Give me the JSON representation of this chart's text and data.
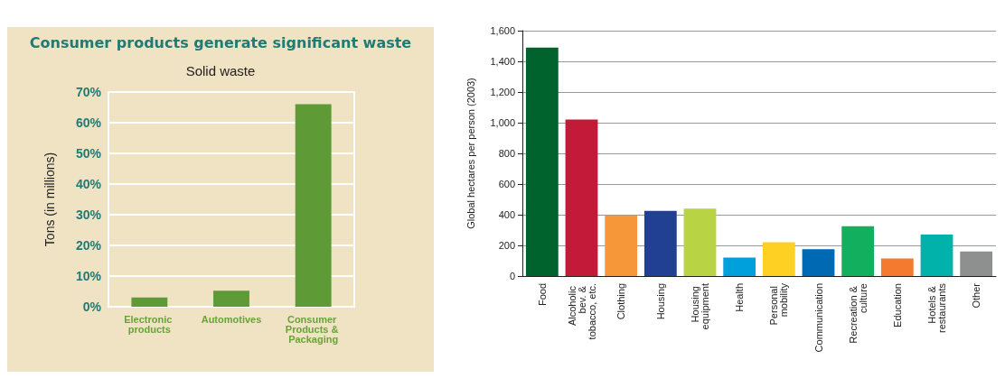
{
  "chart_data": [
    {
      "type": "bar",
      "title": "Consumer products generate significant waste",
      "subtitle": "Solid waste",
      "ylabel": "Tons (in millions)",
      "categories": [
        "Electronic products",
        "Automotives",
        "Consumer Products & Packaging"
      ],
      "values": [
        3,
        5.2,
        66
      ],
      "color": "#5e9a35",
      "ylim": [
        0,
        70
      ],
      "yticks": [
        {
          "value": 0,
          "label": "0%"
        },
        {
          "value": 10,
          "label": "10%"
        },
        {
          "value": 20,
          "label": "20%"
        },
        {
          "value": 30,
          "label": "30%"
        },
        {
          "value": 40,
          "label": "40%"
        },
        {
          "value": 50,
          "label": "50%"
        },
        {
          "value": 60,
          "label": "60%"
        },
        {
          "value": 70,
          "label": "70%"
        }
      ],
      "grid": "y"
    },
    {
      "type": "bar",
      "ylabel": "Global hectares per person (2003)",
      "categories": [
        "Food",
        "Alcoholic bev. & tobacco, etc.",
        "Clothing",
        "Housing",
        "Housing equipment",
        "Health",
        "Personal mobility",
        "Communication",
        "Recreation & culture",
        "Education",
        "Hotels & restaurants",
        "Other"
      ],
      "values": [
        1490,
        1020,
        395,
        425,
        440,
        120,
        220,
        175,
        325,
        115,
        270,
        160
      ],
      "colors": [
        "#00632e",
        "#c41a3a",
        "#f6973a",
        "#213f93",
        "#b8d445",
        "#00a0dc",
        "#fdd023",
        "#0069b3",
        "#12b05e",
        "#f37a2f",
        "#00b2a9",
        "#8e9090"
      ],
      "ylim": [
        0,
        1600
      ],
      "yticks": [
        {
          "value": 0,
          "label": "0"
        },
        {
          "value": 200,
          "label": "200"
        },
        {
          "value": 400,
          "label": "400"
        },
        {
          "value": 600,
          "label": "600"
        },
        {
          "value": 800,
          "label": "800"
        },
        {
          "value": 1000,
          "label": "1,000"
        },
        {
          "value": 1200,
          "label": "1,200"
        },
        {
          "value": 1400,
          "label": "1,400"
        },
        {
          "value": 1600,
          "label": "1,600"
        }
      ],
      "grid": "y"
    }
  ]
}
